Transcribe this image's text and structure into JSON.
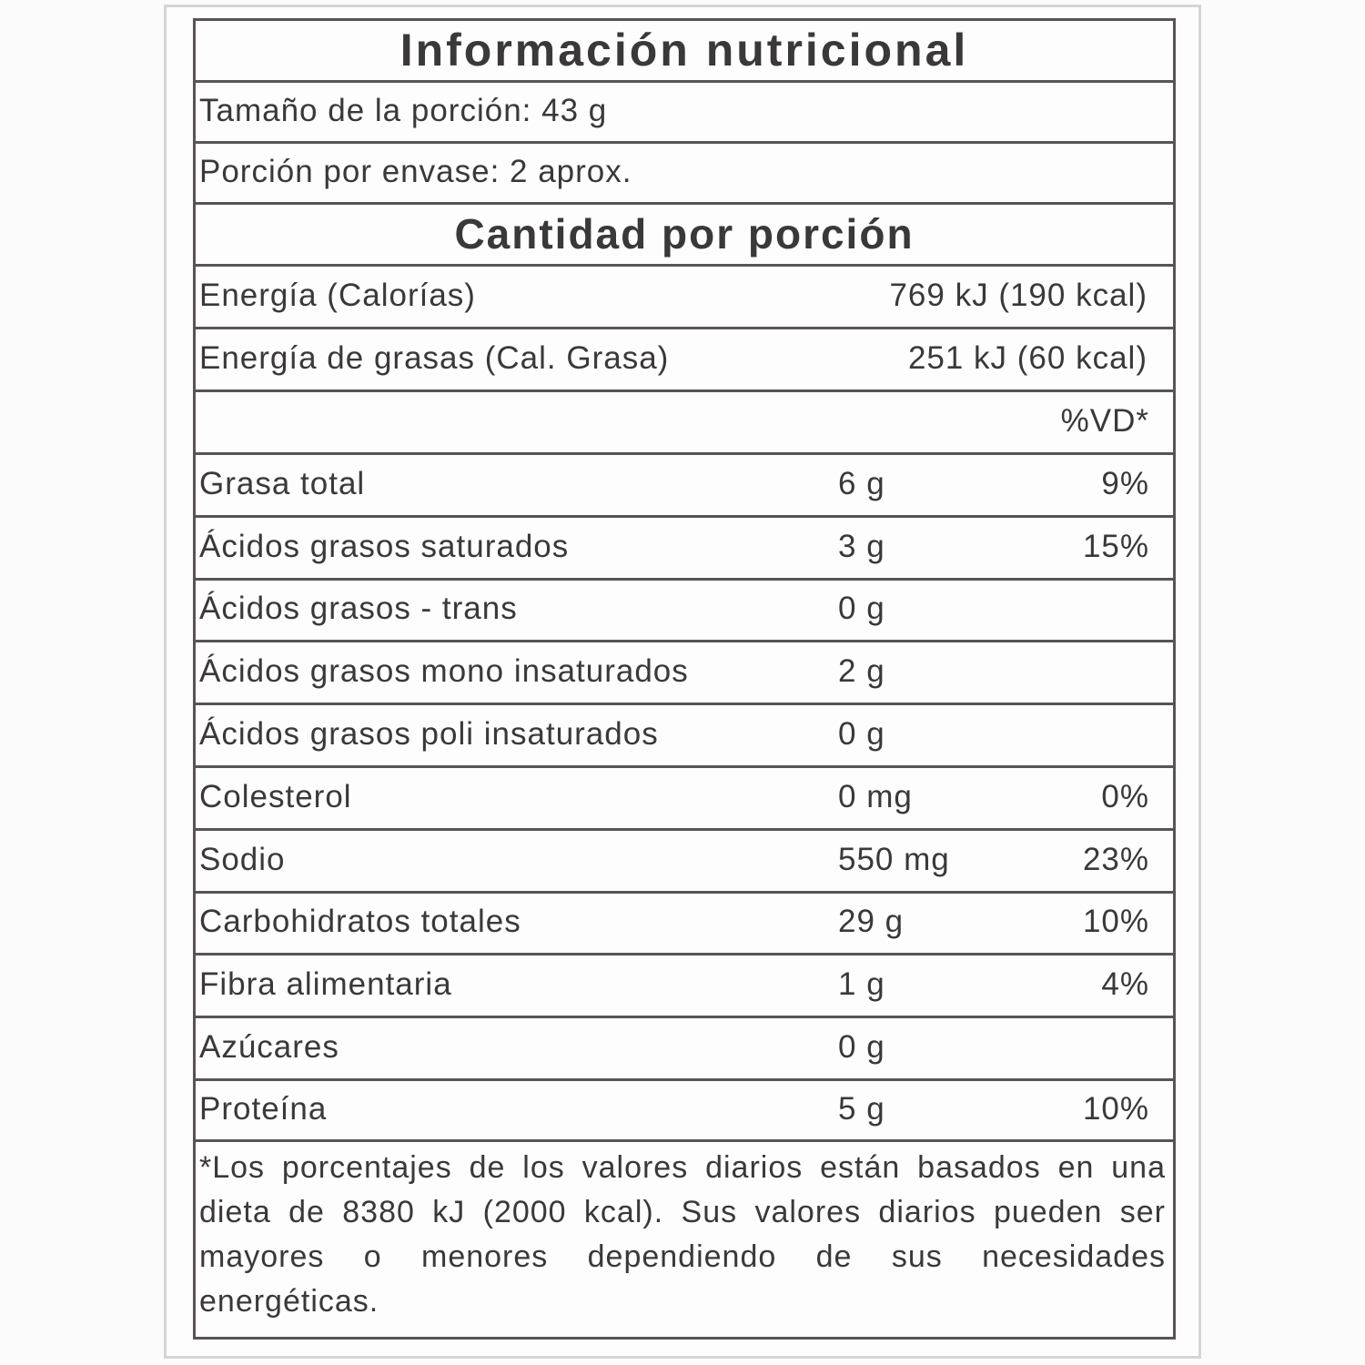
{
  "title": "Información nutricional",
  "serving_size": "Tamaño de la porción: 43 g",
  "servings_per_container": "Porción por envase: 2 aprox.",
  "section_title": "Cantidad por porción",
  "energy": [
    {
      "name": "Energía (Calorías)",
      "value": "769 kJ (190 kcal)"
    },
    {
      "name": "Energía de grasas (Cal. Grasa)",
      "value": "251 kJ (60 kcal)"
    }
  ],
  "dv_header": "%VD*",
  "nutrients": [
    {
      "name": "Grasa total",
      "amount": "6 g",
      "dv": "9%"
    },
    {
      "name": "Ácidos grasos saturados",
      "amount": "3 g",
      "dv": "15%"
    },
    {
      "name": "Ácidos grasos - trans",
      "amount": "0 g"
    },
    {
      "name": "Ácidos grasos mono insaturados",
      "amount": "2 g"
    },
    {
      "name": "Ácidos grasos poli insaturados",
      "amount": "0 g"
    },
    {
      "name": "Colesterol",
      "amount": "0 mg",
      "dv": "0%"
    },
    {
      "name": "Sodio",
      "amount": "550 mg",
      "dv": "23%"
    },
    {
      "name": "Carbohidratos totales",
      "amount": "29 g",
      "dv": "10%"
    },
    {
      "name": "Fibra alimentaria",
      "amount": "1 g",
      "dv": "4%"
    },
    {
      "name": "Azúcares",
      "amount": "0 g"
    },
    {
      "name": "Proteína",
      "amount": "5 g",
      "dv": "10%"
    }
  ],
  "footnote": "*Los porcentajes de los valores diarios están basados en una dieta de 8380 kJ (2000 kcal). Sus valores diarios pueden ser mayores o menores dependiendo de sus necesidades energéticas."
}
